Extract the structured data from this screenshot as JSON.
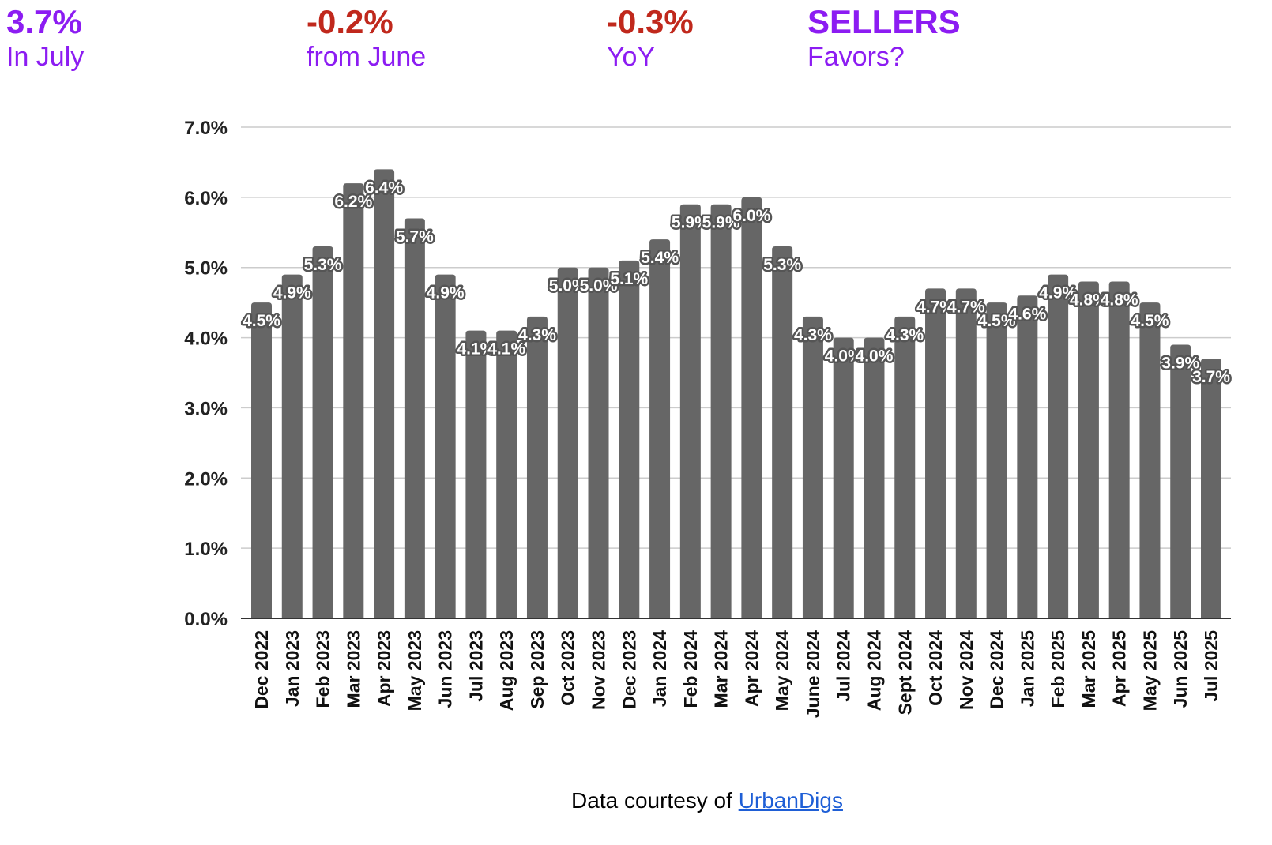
{
  "stats": [
    {
      "value": "3.7%",
      "label": "In July",
      "color": "#8c1cf2"
    },
    {
      "value": "-0.2%",
      "label": "from June",
      "color": "#c0281c"
    },
    {
      "value": "-0.3%",
      "label": "YoY",
      "color": "#c0281c"
    },
    {
      "value": "SELLERS",
      "label": "Favors?",
      "color": "#8c1cf2"
    }
  ],
  "footer": {
    "text": "Data courtesy of",
    "link": "UrbanDigs"
  },
  "chart_data": {
    "type": "bar",
    "title": "",
    "xlabel": "",
    "ylabel": "",
    "ylim": [
      0,
      7
    ],
    "yticks": [
      "0.0%",
      "1.0%",
      "2.0%",
      "3.0%",
      "4.0%",
      "5.0%",
      "6.0%",
      "7.0%"
    ],
    "grid": true,
    "bar_color": "#666666",
    "categories": [
      "Dec 2022",
      "Jan 2023",
      "Feb 2023",
      "Mar 2023",
      "Apr 2023",
      "May 2023",
      "Jun 2023",
      "Jul 2023",
      "Aug 2023",
      "Sep 2023",
      "Oct 2023",
      "Nov 2023",
      "Dec 2023",
      "Jan 2024",
      "Feb 2024",
      "Mar 2024",
      "Apr 2024",
      "May 2024",
      "June 2024",
      "Jul 2024",
      "Aug 2024",
      "Sept 2024",
      "Oct 2024",
      "Nov 2024",
      "Dec 2024",
      "Jan 2025",
      "Feb 2025",
      "Mar 2025",
      "Apr 2025",
      "May 2025",
      "Jun 2025",
      "Jul 2025"
    ],
    "values": [
      4.5,
      4.9,
      5.3,
      6.2,
      6.4,
      5.7,
      4.9,
      4.1,
      4.1,
      4.3,
      5.0,
      5.0,
      5.1,
      5.4,
      5.9,
      5.9,
      6.0,
      5.3,
      4.3,
      4.0,
      4.0,
      4.3,
      4.7,
      4.7,
      4.5,
      4.6,
      4.9,
      4.8,
      4.8,
      4.5,
      3.9,
      3.7
    ],
    "data_labels": [
      "4.5%",
      "4.9%",
      "5.3%",
      "6.2%",
      "6.4%",
      "5.7%",
      "4.9%",
      "4.1%",
      "4.1%",
      "4.3%",
      "5.0%",
      "5.0%",
      "5.1%",
      "5.4%",
      "5.9%",
      "5.9%",
      "6.0%",
      "5.3%",
      "4.3%",
      "4.0%",
      "4.0%",
      "4.3%",
      "4.7%",
      "4.7%",
      "4.5%",
      "4.6%",
      "4.9%",
      "4.8%",
      "4.8%",
      "4.5%",
      "3.9%",
      "3.7%"
    ]
  }
}
